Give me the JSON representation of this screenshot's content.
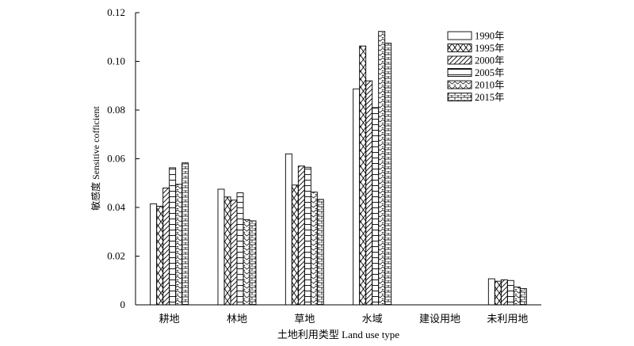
{
  "chart_data": {
    "type": "bar",
    "xlabel": "土地利用类型 Land use type",
    "ylabel": "敏感度 Sensitive cofficient",
    "ylim": [
      0,
      0.12
    ],
    "y_ticks": [
      "0",
      "0.02",
      "0.04",
      "0.06",
      "0.08",
      "0.10",
      "0.12"
    ],
    "y_tick_values": [
      0,
      0.02,
      0.04,
      0.06,
      0.08,
      0.1,
      0.12
    ],
    "categories": [
      "耕地",
      "林地",
      "草地",
      "水域",
      "建设用地",
      "未利用地"
    ],
    "legend_position": "top-right",
    "series": [
      {
        "name": "1990年",
        "pattern": "blank",
        "values": [
          0.0415,
          0.0475,
          0.062,
          0.0887,
          0,
          0.0107
        ]
      },
      {
        "name": "1995年",
        "pattern": "cross",
        "values": [
          0.0405,
          0.0443,
          0.0492,
          0.1063,
          0,
          0.0097
        ]
      },
      {
        "name": "2000年",
        "pattern": "diagonal",
        "values": [
          0.048,
          0.043,
          0.057,
          0.092,
          0,
          0.0103
        ]
      },
      {
        "name": "2005年",
        "pattern": "hlines",
        "values": [
          0.0563,
          0.046,
          0.0565,
          0.081,
          0,
          0.01
        ]
      },
      {
        "name": "2010年",
        "pattern": "zigzag",
        "values": [
          0.0495,
          0.035,
          0.0463,
          0.1123,
          0,
          0.0073
        ]
      },
      {
        "name": "2015年",
        "pattern": "brick",
        "values": [
          0.0583,
          0.0345,
          0.0433,
          0.1075,
          0,
          0.0067
        ]
      }
    ]
  }
}
